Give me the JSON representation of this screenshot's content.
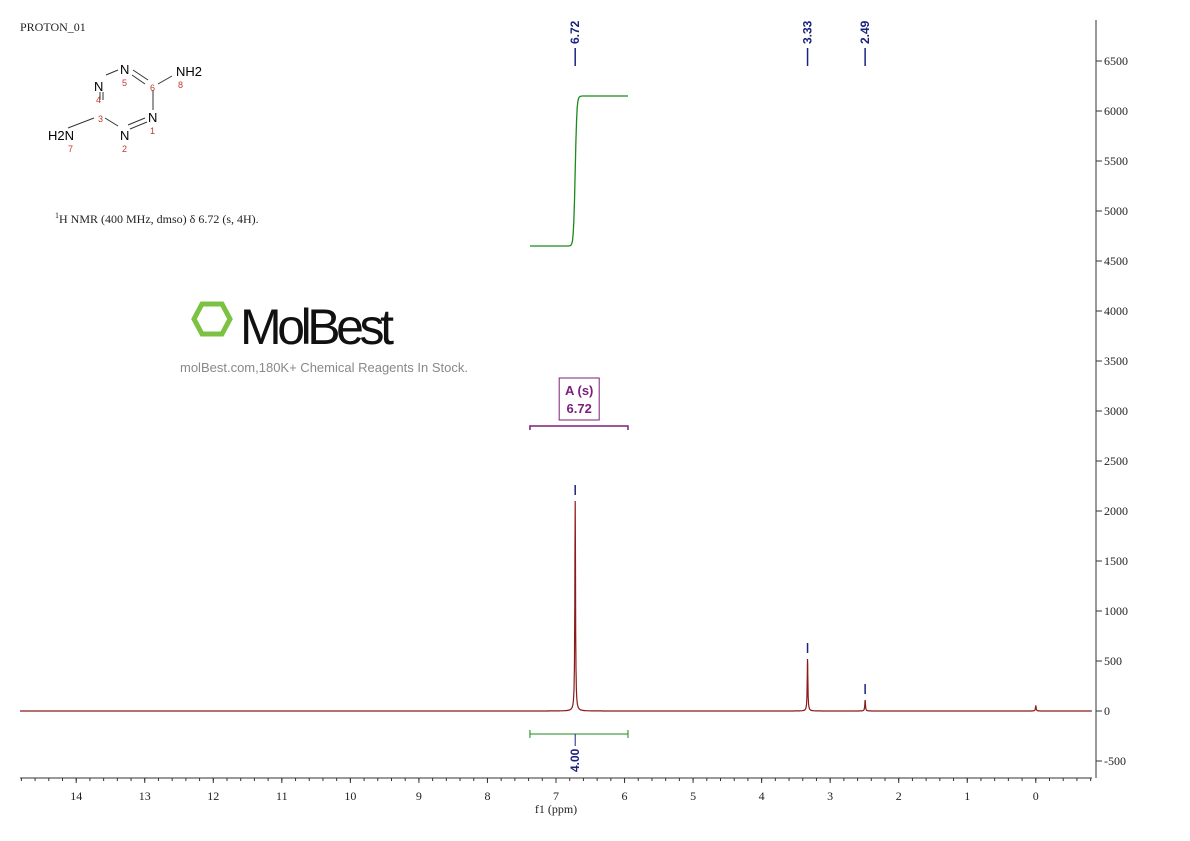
{
  "title": "PROTON_01",
  "description": "H NMR (400 MHz, dmso) δ 6.72 (s, 4H).",
  "description_sup": "1",
  "watermark": {
    "logo": "MolBest",
    "tagline": "molBest.com,180K+ Chemical Reagents In Stock."
  },
  "structure": {
    "atoms": [
      "N",
      "N",
      "N",
      "N",
      "NH2",
      "H2N"
    ],
    "numbers": [
      "1",
      "2",
      "3",
      "4",
      "5",
      "6",
      "7",
      "8"
    ]
  },
  "chart_data": {
    "type": "line",
    "xlabel": "f1  (ppm)",
    "xlim": [
      14.82,
      -0.82
    ],
    "ylim": [
      -670,
      6910
    ],
    "xticks": [
      14,
      13,
      12,
      11,
      10,
      9,
      8,
      7,
      6,
      5,
      4,
      3,
      2,
      1,
      0
    ],
    "yticks": [
      -500,
      0,
      500,
      1000,
      1500,
      2000,
      2500,
      3000,
      3500,
      4000,
      4500,
      5000,
      5500,
      6000,
      6500
    ],
    "peaks": [
      {
        "ppm": 6.72,
        "height": 2100,
        "label": "6.72"
      },
      {
        "ppm": 3.33,
        "height": 520,
        "label": "3.33"
      },
      {
        "ppm": 2.49,
        "height": 110,
        "label": "2.49"
      },
      {
        "ppm": 0.0,
        "height": 55,
        "label": ""
      }
    ],
    "integral": {
      "from": 7.38,
      "to": 5.95,
      "start": 4650,
      "end": 6150,
      "value": "4.00"
    },
    "multiplet": {
      "label": "A (s)",
      "shift": "6.72",
      "from": 7.38,
      "to": 5.95
    },
    "colors": {
      "spectrum": "#8b1a1a",
      "integral": "#1a8a1a",
      "peak_label": "#1a237e",
      "multiplet": "#7b1f7b"
    }
  }
}
